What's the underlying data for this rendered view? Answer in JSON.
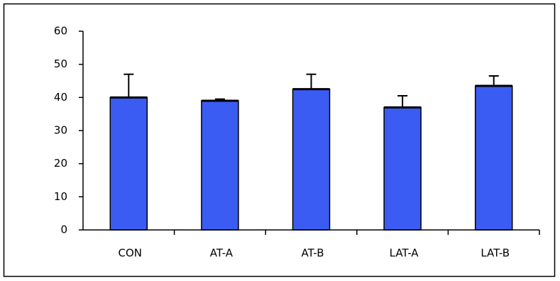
{
  "chart_data": {
    "type": "bar",
    "categories": [
      "CON",
      "AT-A",
      "AT-B",
      "LAT-A",
      "LAT-B"
    ],
    "values": [
      40,
      39,
      42.5,
      37,
      43.5
    ],
    "errors": [
      7,
      0.5,
      4.5,
      3.5,
      3
    ],
    "color": "#3a5cf2",
    "ylim": [
      0,
      60
    ],
    "yticks": [
      0,
      10,
      20,
      30,
      40,
      50,
      60
    ],
    "grid": false
  }
}
